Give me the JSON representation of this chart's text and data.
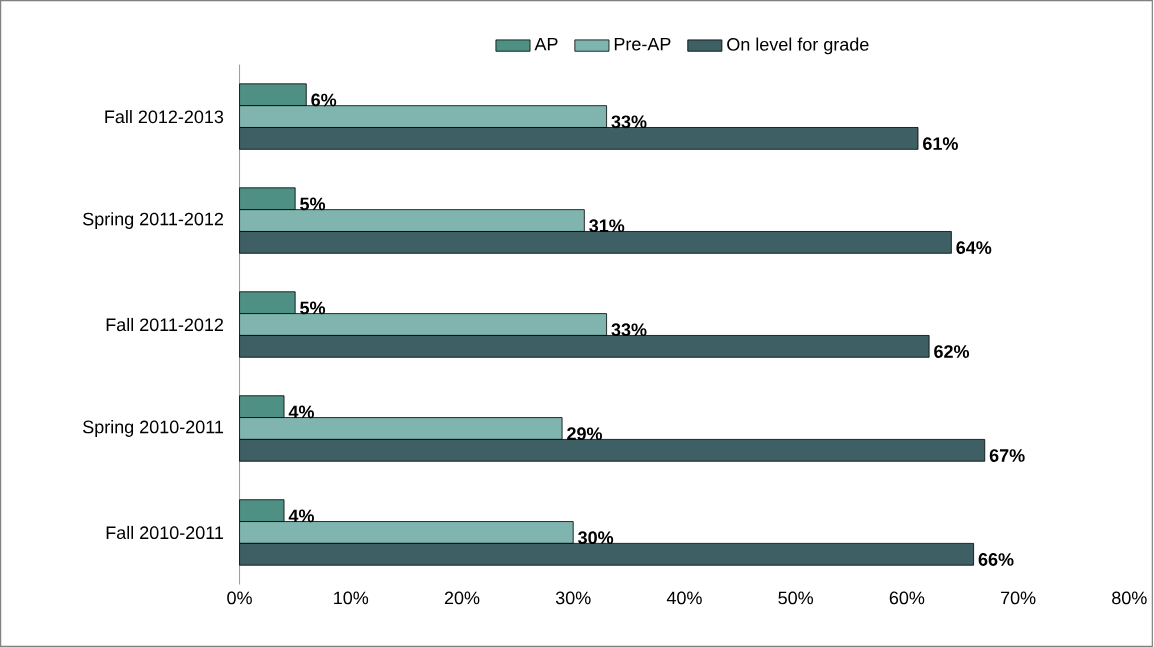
{
  "chart_data": {
    "type": "bar",
    "orientation": "horizontal",
    "legend": "top",
    "categories": [
      "Fall 2012-2013",
      "Spring 2011-2012",
      "Fall 2011-2012",
      "Spring 2010-2011",
      "Fall 2010-2011"
    ],
    "series": [
      {
        "name": "AP",
        "color": "#4f9084",
        "values": [
          6,
          5,
          5,
          4,
          4
        ],
        "value_labels": [
          "6%",
          "5%",
          "5%",
          "4%",
          "4%"
        ]
      },
      {
        "name": "Pre-AP",
        "color": "#7fb5ae",
        "values": [
          33,
          31,
          33,
          29,
          30
        ],
        "value_labels": [
          "33%",
          "31%",
          "33%",
          "29%",
          "30%"
        ]
      },
      {
        "name": "On level for grade",
        "color": "#3e5f63",
        "values": [
          61,
          64,
          62,
          67,
          66
        ],
        "value_labels": [
          "61%",
          "64%",
          "62%",
          "67%",
          "66%"
        ]
      }
    ],
    "xlim": [
      0,
      80
    ],
    "xticks": [
      {
        "value": 0,
        "label": "0%"
      },
      {
        "value": 10,
        "label": "10%"
      },
      {
        "value": 20,
        "label": "20%"
      },
      {
        "value": 30,
        "label": "30%"
      },
      {
        "value": 40,
        "label": "40%"
      },
      {
        "value": 50,
        "label": "50%"
      },
      {
        "value": 60,
        "label": "60%"
      },
      {
        "value": 70,
        "label": "70%"
      },
      {
        "value": 80,
        "label": "80%"
      }
    ]
  }
}
